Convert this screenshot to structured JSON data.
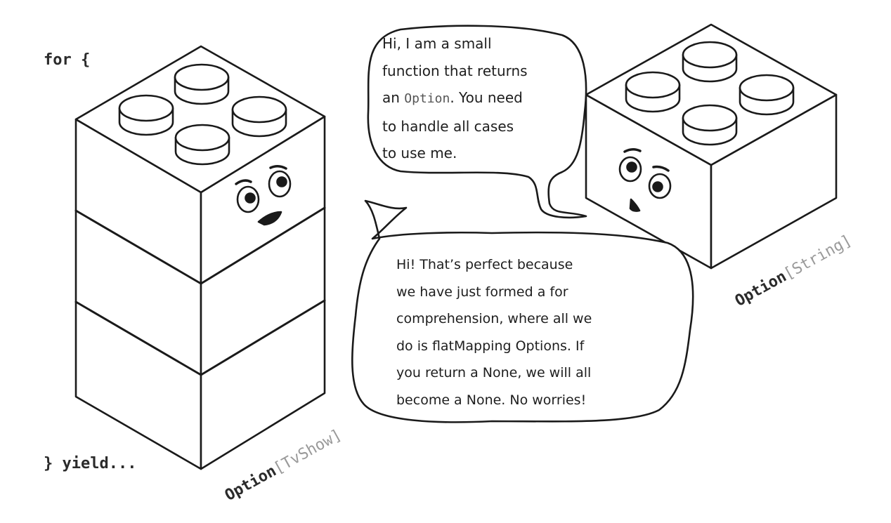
{
  "code": {
    "for_open": "for {",
    "yield_close": "} yield..."
  },
  "bubble_top": {
    "lines": [
      "Hi, I am a small",
      "function that returns",
      "an ",
      ". You need",
      "to handle all cases",
      "to use me."
    ],
    "inline_code": "Option"
  },
  "bubble_bottom": {
    "lines": [
      "Hi! That’s perfect because",
      "we have just formed a for",
      "comprehension, where all we",
      "do is flatMapping Options. If",
      "you return a None, we will all",
      "become a None. No worries!"
    ]
  },
  "labels": {
    "tall_stack": {
      "type": "Option",
      "param": "[TvShow]"
    },
    "small_brick": {
      "type": "Option",
      "param": "[String]"
    }
  },
  "colors": {
    "stroke": "#1a1a1a",
    "background": "#ffffff",
    "param_gray": "#9a9a9a"
  }
}
